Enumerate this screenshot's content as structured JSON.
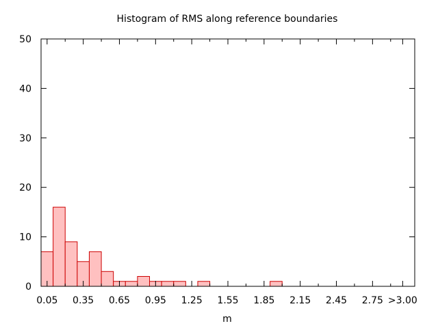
{
  "chart_data": {
    "type": "bar",
    "title": "Histogram of RMS along reference boundaries",
    "xlabel": "m",
    "ylabel": "",
    "ylim": [
      0,
      50
    ],
    "xlim": [
      0.0,
      3.1
    ],
    "grid": false,
    "bin_width": 0.1,
    "colors": {
      "fill": "#ffc0c0",
      "stroke": "#cc0000",
      "axis": "#000000"
    },
    "y_ticks": [
      0,
      10,
      20,
      30,
      40,
      50
    ],
    "x_ticks": [
      {
        "value": 0.05,
        "label": "0.05"
      },
      {
        "value": 0.35,
        "label": "0.35"
      },
      {
        "value": 0.65,
        "label": "0.65"
      },
      {
        "value": 0.95,
        "label": "0.95"
      },
      {
        "value": 1.25,
        "label": "1.25"
      },
      {
        "value": 1.55,
        "label": "1.55"
      },
      {
        "value": 1.85,
        "label": "1.85"
      },
      {
        "value": 2.15,
        "label": "2.15"
      },
      {
        "value": 2.45,
        "label": "2.45"
      },
      {
        "value": 2.75,
        "label": "2.75"
      },
      {
        "value": 3.0,
        "label": ">3.00"
      }
    ],
    "x_minor_ticks": [
      0.2,
      0.5,
      0.8,
      1.1,
      1.4,
      1.7,
      2.0,
      2.3,
      2.6,
      2.9
    ],
    "bins": [
      {
        "x": 0.05,
        "count": 7
      },
      {
        "x": 0.15,
        "count": 16
      },
      {
        "x": 0.25,
        "count": 9
      },
      {
        "x": 0.35,
        "count": 5
      },
      {
        "x": 0.45,
        "count": 7
      },
      {
        "x": 0.55,
        "count": 3
      },
      {
        "x": 0.65,
        "count": 1
      },
      {
        "x": 0.75,
        "count": 1
      },
      {
        "x": 0.85,
        "count": 2
      },
      {
        "x": 0.95,
        "count": 1
      },
      {
        "x": 1.05,
        "count": 1
      },
      {
        "x": 1.15,
        "count": 1
      },
      {
        "x": 1.35,
        "count": 1
      },
      {
        "x": 1.95,
        "count": 1
      }
    ]
  }
}
